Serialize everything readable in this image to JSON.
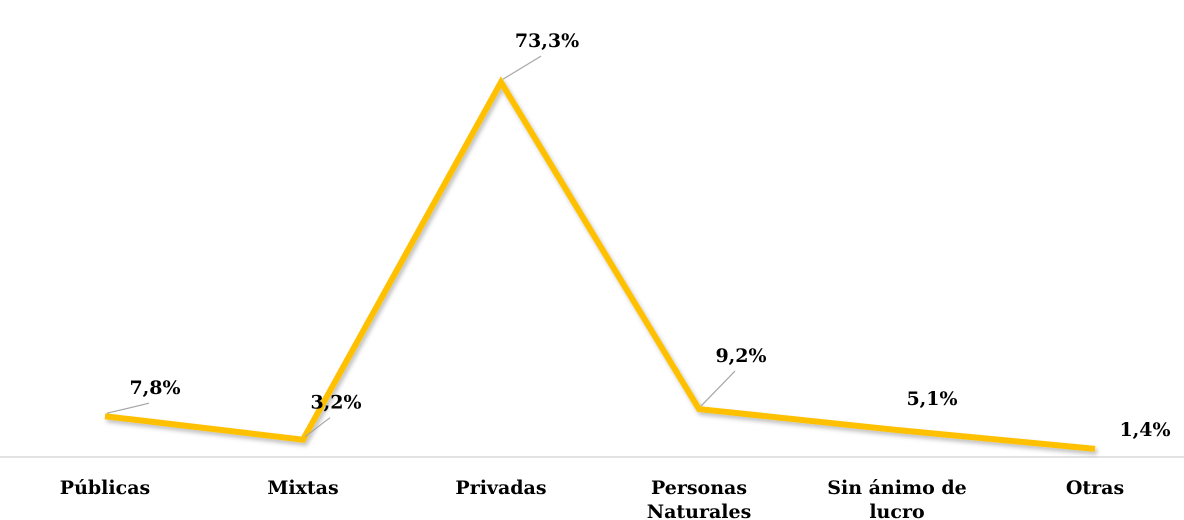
{
  "chart_data": {
    "type": "line",
    "categories": [
      "Públicas",
      "Mixtas",
      "Privadas",
      "Personas Naturales",
      "Sin ánimo de lucro",
      "Otras"
    ],
    "values": [
      7.8,
      3.2,
      73.3,
      9.2,
      5.1,
      1.4
    ],
    "value_labels": [
      "7,8%",
      "3,2%",
      "73,3%",
      "9,2%",
      "5,1%",
      "1,4%"
    ],
    "color": "#FFC000",
    "ylim": [
      0,
      80
    ]
  }
}
